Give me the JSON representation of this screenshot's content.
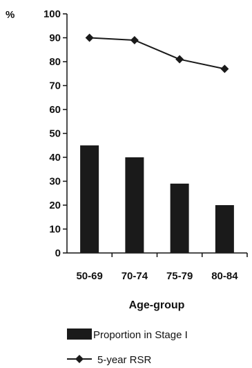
{
  "chart_data": {
    "type": "bar",
    "categories": [
      "50-69",
      "70-74",
      "75-79",
      "80-84"
    ],
    "xlabel": "Age-group",
    "ylabel": "%",
    "ylim": [
      0,
      100
    ],
    "yticks": [
      0,
      10,
      20,
      30,
      40,
      50,
      60,
      70,
      80,
      90,
      100
    ],
    "grid": false,
    "legend_position": "bottom",
    "series": [
      {
        "name": "Proportion in Stage I",
        "kind": "bar",
        "color": "#1a1a1a",
        "values": [
          45,
          40,
          29,
          20
        ]
      },
      {
        "name": "5-year RSR",
        "kind": "line",
        "marker": "diamond",
        "color": "#1a1a1a",
        "values": [
          90,
          89,
          81,
          77
        ]
      }
    ]
  }
}
